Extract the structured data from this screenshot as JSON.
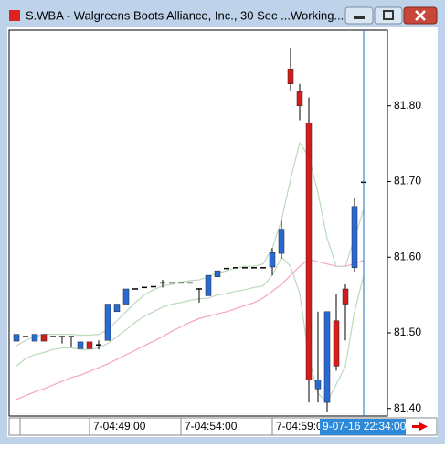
{
  "window": {
    "title": "S.WBA - Walgreens Boots Alliance, Inc., 30 Sec ...Working..."
  },
  "chart_data": {
    "type": "candlestick",
    "categories": [
      null,
      null,
      null,
      null,
      null,
      null,
      null,
      null,
      "7-04:49:00",
      null,
      null,
      null,
      null,
      null,
      null,
      null,
      null,
      null,
      "7-04:54:00",
      null,
      null,
      null,
      null,
      null,
      null,
      null,
      null,
      null,
      "7-04:59:0",
      null,
      null,
      null,
      null,
      null,
      null,
      null,
      null,
      null,
      null
    ],
    "cursor_label": "9-07-16 22:34:00",
    "open": [
      81.489,
      81.495,
      81.489,
      81.498,
      81.495,
      81.495,
      81.495,
      81.479,
      81.488,
      81.484,
      81.49,
      81.528,
      81.538,
      81.558,
      81.56,
      81.561,
      81.566,
      81.566,
      81.566,
      81.566,
      81.558,
      81.549,
      81.574,
      81.585,
      81.586,
      81.586,
      81.586,
      81.586,
      81.587,
      81.605,
      81.848,
      81.819,
      81.777,
      81.426,
      81.408,
      81.516,
      81.558,
      81.586,
      81.699
    ],
    "high": [
      81.498,
      81.495,
      81.498,
      81.498,
      81.495,
      81.495,
      81.495,
      81.488,
      81.488,
      81.49,
      81.538,
      81.538,
      81.558,
      81.558,
      81.56,
      81.561,
      81.57,
      81.566,
      81.566,
      81.566,
      81.558,
      81.576,
      81.582,
      81.585,
      81.586,
      81.586,
      81.586,
      81.586,
      81.612,
      81.649,
      81.877,
      81.829,
      81.811,
      81.528,
      81.528,
      81.552,
      81.564,
      81.679,
      81.699
    ],
    "low": [
      81.489,
      81.495,
      81.489,
      81.489,
      81.495,
      81.486,
      81.481,
      81.479,
      81.479,
      81.478,
      81.49,
      81.528,
      81.538,
      81.558,
      81.56,
      81.561,
      81.56,
      81.566,
      81.566,
      81.566,
      81.54,
      81.549,
      81.574,
      81.585,
      81.586,
      81.586,
      81.586,
      81.586,
      81.576,
      81.598,
      81.819,
      81.781,
      81.408,
      81.408,
      81.396,
      81.45,
      81.49,
      81.581,
      81.699
    ],
    "close": [
      81.498,
      81.495,
      81.498,
      81.489,
      81.495,
      81.495,
      81.495,
      81.488,
      81.479,
      81.484,
      81.538,
      81.538,
      81.558,
      81.558,
      81.56,
      81.561,
      81.566,
      81.566,
      81.566,
      81.566,
      81.558,
      81.576,
      81.582,
      81.585,
      81.586,
      81.586,
      81.586,
      81.586,
      81.606,
      81.637,
      81.829,
      81.8,
      81.438,
      81.438,
      81.528,
      81.456,
      81.538,
      81.667,
      81.699
    ],
    "up_color": "#2a6ad4",
    "down_color": "#d41c1c",
    "flat_color": "#000000",
    "series": [
      {
        "color": "#f4a3c8",
        "values": [
          81.412,
          81.417,
          81.422,
          81.426,
          81.431,
          81.436,
          81.441,
          81.444,
          81.449,
          81.454,
          81.459,
          81.465,
          81.471,
          81.477,
          81.483,
          81.489,
          81.495,
          81.502,
          81.508,
          81.514,
          81.519,
          81.522,
          81.525,
          81.528,
          81.532,
          81.536,
          81.54,
          81.546,
          81.555,
          81.564,
          81.576,
          81.588,
          81.597,
          81.594,
          81.591,
          81.588,
          81.588,
          81.591,
          81.596
        ]
      },
      {
        "color": "#bcd9bc",
        "values": [
          81.483,
          81.49,
          81.495,
          81.498,
          81.498,
          81.498,
          81.498,
          81.497,
          81.497,
          81.498,
          81.504,
          81.516,
          81.528,
          81.54,
          81.55,
          81.557,
          81.562,
          81.564,
          81.567,
          81.569,
          81.57,
          81.574,
          81.579,
          81.582,
          81.586,
          81.588,
          81.588,
          81.591,
          81.612,
          81.649,
          81.703,
          81.751,
          81.733,
          81.685,
          81.625,
          81.588,
          81.588,
          81.625,
          81.663
        ]
      },
      {
        "color": "#bcd9bc",
        "values": [
          81.456,
          81.466,
          81.471,
          81.474,
          81.478,
          81.48,
          81.48,
          81.478,
          81.478,
          81.48,
          81.486,
          81.495,
          81.504,
          81.514,
          81.522,
          81.528,
          81.534,
          81.538,
          81.54,
          81.543,
          81.545,
          81.546,
          81.55,
          81.552,
          81.555,
          81.557,
          81.56,
          81.562,
          81.576,
          81.6,
          81.588,
          81.552,
          81.468,
          81.42,
          81.408,
          81.432,
          81.456,
          81.528,
          81.576
        ]
      }
    ],
    "ylim": [
      81.39,
      81.9
    ],
    "yticks": [
      {
        "value": 81.4,
        "label": "81.40"
      },
      {
        "value": 81.5,
        "label": "81.50"
      },
      {
        "value": 81.6,
        "label": "81.60"
      },
      {
        "value": 81.7,
        "label": "81.70"
      },
      {
        "value": 81.8,
        "label": "81.80"
      }
    ]
  }
}
